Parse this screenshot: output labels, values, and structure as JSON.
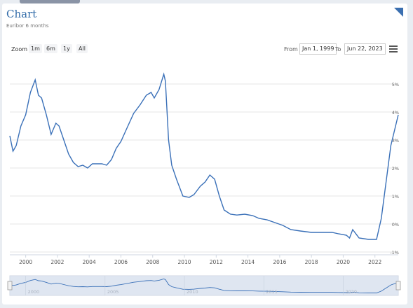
{
  "title": "Chart",
  "subtitle": "Euribor 6 months",
  "zoom": {
    "label": "Zoom",
    "buttons": [
      "1m",
      "6m",
      "1y",
      "All"
    ]
  },
  "range": {
    "from_label": "From",
    "from_value": "Jan 1, 1999",
    "to_label": "To",
    "to_value": "Jun 22, 2023"
  },
  "colors": {
    "line": "#3a70b8",
    "navigator_fill": "#d7e0ee",
    "grid": "#e6e6e6"
  },
  "chart_data": {
    "type": "line",
    "title": "Chart",
    "subtitle": "Euribor 6 months",
    "series": [
      {
        "x": [
          1999.0,
          1999.2,
          1999.4,
          1999.7,
          2000.0,
          2000.3,
          2000.6,
          2000.8,
          2001.0,
          2001.3,
          2001.6,
          2001.9,
          2002.1,
          2002.4,
          2002.7,
          2003.0,
          2003.3,
          2003.6,
          2003.9,
          2004.2,
          2004.5,
          2004.8,
          2005.1,
          2005.4,
          2005.7,
          2006.0,
          2006.4,
          2006.8,
          2007.2,
          2007.6,
          2007.9,
          2008.1,
          2008.4,
          2008.7,
          2008.8,
          2009.0,
          2009.2,
          2009.5,
          2009.9,
          2010.3,
          2010.6,
          2011.0,
          2011.3,
          2011.6,
          2011.9,
          2012.2,
          2012.5,
          2012.9,
          2013.3,
          2013.8,
          2014.3,
          2014.7,
          2015.2,
          2015.7,
          2016.2,
          2016.7,
          2017.3,
          2018.0,
          2018.7,
          2019.3,
          2019.7,
          2020.2,
          2020.4,
          2020.6,
          2021.0,
          2021.6,
          2022.1,
          2022.4,
          2022.7,
          2023.0,
          2023.47
        ],
        "y": [
          3.15,
          2.6,
          2.8,
          3.5,
          3.9,
          4.7,
          5.15,
          4.6,
          4.5,
          3.9,
          3.2,
          3.6,
          3.5,
          3.0,
          2.5,
          2.2,
          2.05,
          2.1,
          2.0,
          2.15,
          2.15,
          2.15,
          2.1,
          2.3,
          2.7,
          2.95,
          3.45,
          3.95,
          4.25,
          4.6,
          4.7,
          4.5,
          4.8,
          5.35,
          5.1,
          3.0,
          2.1,
          1.6,
          1.0,
          0.95,
          1.05,
          1.35,
          1.5,
          1.75,
          1.6,
          1.0,
          0.5,
          0.35,
          0.32,
          0.35,
          0.3,
          0.2,
          0.15,
          0.05,
          -0.05,
          -0.2,
          -0.25,
          -0.3,
          -0.3,
          -0.3,
          -0.35,
          -0.4,
          -0.5,
          -0.2,
          -0.5,
          -0.55,
          -0.55,
          0.2,
          1.5,
          2.8,
          3.9
        ]
      }
    ],
    "x_ticks": [
      "2000",
      "2002",
      "2004",
      "2006",
      "2008",
      "2010",
      "2012",
      "2014",
      "2016",
      "2018",
      "2020",
      "2022"
    ],
    "x_tick_values": [
      2000,
      2002,
      2004,
      2006,
      2008,
      2010,
      2012,
      2014,
      2016,
      2018,
      2020,
      2022
    ],
    "y_ticks": [
      "5%",
      "4%",
      "3%",
      "2%",
      "1%",
      "0%",
      "-1%"
    ],
    "y_tick_values": [
      5,
      4,
      3,
      2,
      1,
      0,
      -1
    ],
    "xlim": [
      1999.0,
      2023.47
    ],
    "ylim": [
      -1,
      5.5
    ],
    "navigator_ticks": [
      "2000",
      "2005",
      "2010",
      "2015",
      "2020"
    ],
    "navigator_tick_values": [
      2000,
      2005,
      2010,
      2015,
      2020
    ],
    "grid": true
  }
}
